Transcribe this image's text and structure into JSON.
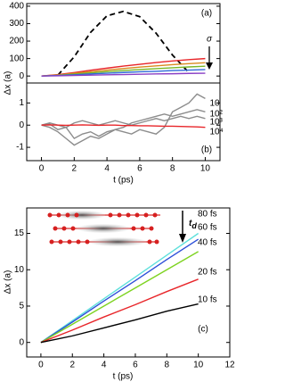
{
  "chart_data": [
    {
      "type": "line",
      "ylabel": "Δx (a)",
      "annotations": [
        "(a)",
        "σ"
      ],
      "x": [
        0,
        1,
        2,
        3,
        4,
        5,
        6,
        7,
        8,
        9,
        10
      ],
      "xlim": [
        -0.9,
        10.9
      ],
      "ylim": [
        -40,
        415
      ],
      "yticks": [
        0,
        100,
        200,
        300,
        400
      ],
      "series": [
        {
          "color": "#000000",
          "style": "dashed",
          "values": [
            null,
            5,
            110,
            250,
            345,
            370,
            340,
            245,
            120,
            20,
            null
          ]
        },
        {
          "color": "#e8262a",
          "values": [
            0,
            8,
            20,
            33,
            45,
            57,
            67,
            77,
            86,
            94,
            100
          ]
        },
        {
          "color": "#d98b1f",
          "values": [
            0,
            6,
            15,
            25,
            34,
            43,
            51,
            58,
            65,
            71,
            76
          ]
        },
        {
          "color": "#79b829",
          "values": [
            0,
            4,
            11,
            18,
            25,
            31,
            37,
            42,
            47,
            52,
            56
          ]
        },
        {
          "color": "#2f6bd8",
          "values": [
            0,
            3,
            7,
            12,
            16,
            20,
            24,
            27,
            31,
            34,
            37
          ]
        },
        {
          "color": "#8a3fc4",
          "values": [
            0,
            1,
            3,
            5,
            7,
            8,
            10,
            12,
            13,
            15,
            16
          ]
        }
      ]
    },
    {
      "type": "line",
      "xlabel": "t (ps)",
      "annotations": [
        "(b)"
      ],
      "x": [
        0,
        0.5,
        1,
        1.5,
        2,
        2.5,
        3,
        3.5,
        4,
        4.5,
        5,
        5.5,
        6,
        6.5,
        7,
        7.5,
        8,
        8.5,
        9,
        9.5,
        10
      ],
      "xlim": [
        -0.9,
        10.9
      ],
      "ylim": [
        -1.6,
        1.9
      ],
      "xticks": [
        0,
        2,
        4,
        6,
        8,
        10
      ],
      "yticks": [
        -1,
        0,
        1
      ],
      "series": [
        {
          "name": "10",
          "color": "#8c8c8c",
          "values": [
            0,
            0.05,
            -0.2,
            -0.1,
            -0.6,
            -0.4,
            -0.3,
            -0.5,
            -0.3,
            -0.2,
            -0.3,
            -0.4,
            -0.2,
            -0.3,
            -0.4,
            -0.1,
            0.6,
            0.8,
            1.0,
            1.4,
            1.2
          ]
        },
        {
          "name": "10²",
          "color": "#8c8c8c",
          "values": [
            0,
            -0.1,
            -0.3,
            -0.6,
            -0.9,
            -0.7,
            -0.5,
            -0.6,
            -0.4,
            -0.2,
            -0.1,
            0.1,
            0.2,
            0.3,
            0.4,
            0.5,
            0.4,
            0.5,
            0.6,
            0.7,
            0.6
          ]
        },
        {
          "name": "10³",
          "color": "#8c8c8c",
          "values": [
            0,
            0.1,
            0.0,
            -0.1,
            0.1,
            0.2,
            0.1,
            0.0,
            0.1,
            0.2,
            0.1,
            0.0,
            0.1,
            0.2,
            0.3,
            0.2,
            0.3,
            0.4,
            0.3,
            0.4,
            0.3
          ]
        },
        {
          "name": "10⁴",
          "color": "#e8262a",
          "values": [
            0,
            0.01,
            0,
            -0.01,
            0,
            0.01,
            0,
            -0.01,
            0,
            0,
            -0.02,
            -0.02,
            -0.03,
            -0.03,
            -0.04,
            -0.05,
            -0.05,
            -0.06,
            -0.07,
            -0.08,
            -0.1
          ]
        }
      ]
    },
    {
      "type": "line",
      "xlabel": "t (ps)",
      "ylabel": "Δx (a)",
      "annotations": [
        "(c)",
        "t",
        "d"
      ],
      "x": [
        0,
        2,
        4,
        6,
        8,
        10
      ],
      "xlim": [
        -0.9,
        12
      ],
      "ylim": [
        -2,
        18.5
      ],
      "xticks": [
        0,
        2,
        4,
        6,
        8,
        10,
        12
      ],
      "yticks": [
        0,
        5,
        10,
        15
      ],
      "series": [
        {
          "name": "80 fs",
          "color": "#5fe0dc",
          "values": [
            0,
            3,
            6,
            9,
            12,
            15
          ]
        },
        {
          "name": "60 fs",
          "color": "#2d4fd8",
          "values": [
            0,
            2.8,
            5.7,
            8.5,
            11.4,
            14.2
          ]
        },
        {
          "name": "40 fs",
          "color": "#7ed321",
          "values": [
            0,
            2.5,
            5,
            7.5,
            10,
            12.5
          ]
        },
        {
          "name": "20 fs",
          "color": "#e8262a",
          "values": [
            0,
            1.7,
            3.5,
            5.2,
            7,
            8.7
          ]
        },
        {
          "name": "10 fs",
          "color": "#000000",
          "values": [
            0,
            0.9,
            2,
            3.1,
            4.3,
            5.3
          ]
        }
      ]
    }
  ]
}
